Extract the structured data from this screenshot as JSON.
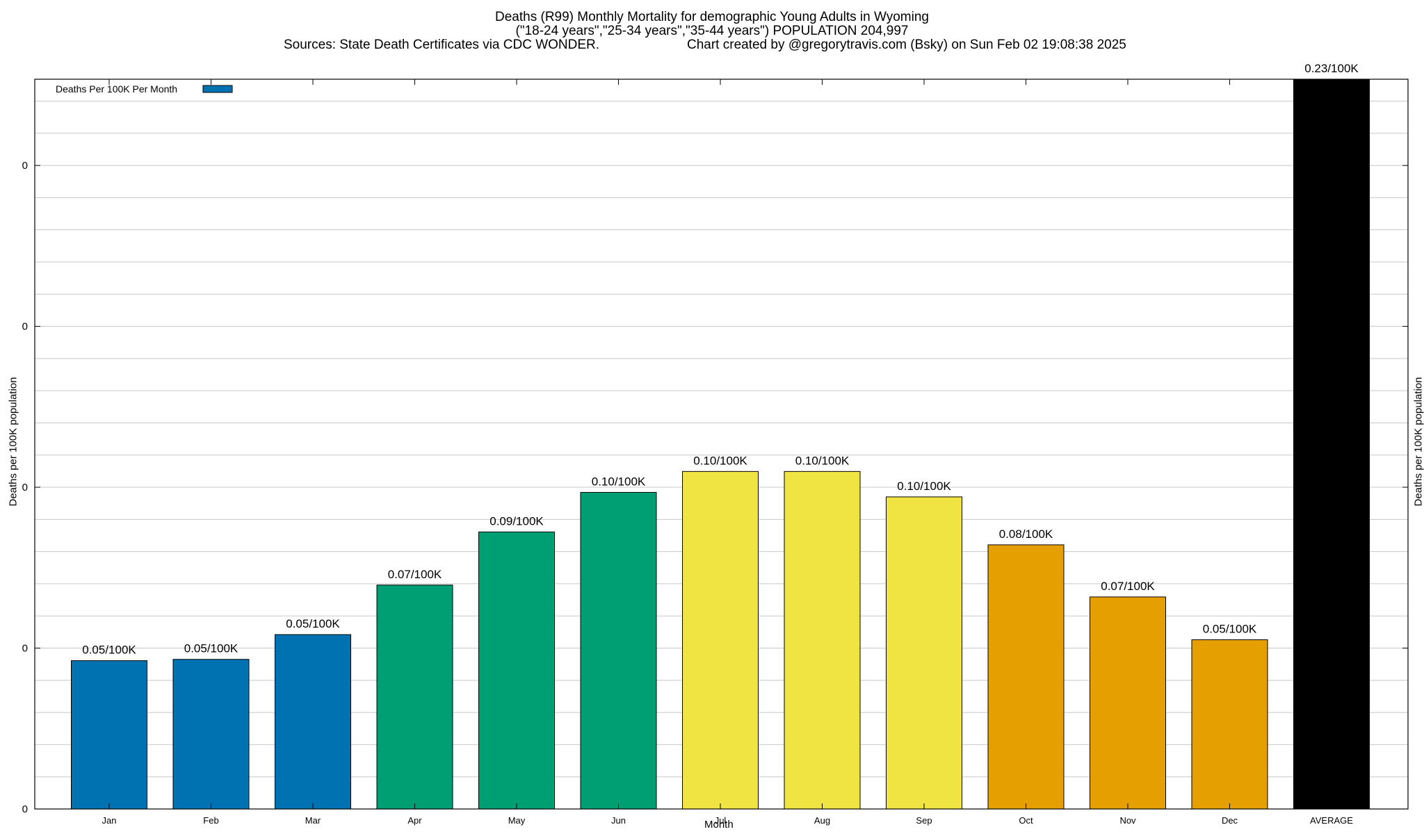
{
  "title": {
    "line1": "Deaths (R99) Monthly Mortality for demographic Young Adults in Wyoming",
    "line2": "(\"18-24 years\",\"25-34 years\",\"35-44 years\") POPULATION 204,997",
    "sources": "Sources: State Death Certificates via CDC WONDER.",
    "credit": "Chart created by @gregorytravis.com (Bsky) on Sun Feb 02 19:08:38 2025"
  },
  "legend": {
    "label": "Deaths Per 100K Per Month",
    "color": "#0072b2"
  },
  "chart_data": {
    "type": "bar",
    "xlabel": "Month",
    "ylabel": "Deaths per 100K population",
    "y2label": "Deaths per 100K population",
    "ylim": [
      0,
      0.2268
    ],
    "ytick_values": [
      0,
      0.05,
      0.1,
      0.15,
      0.2
    ],
    "ytick_labels": [
      "0",
      "0",
      "0",
      "0",
      "0"
    ],
    "grid": true,
    "legend_position": "top-left",
    "categories": [
      "Jan",
      "Feb",
      "Mar",
      "Apr",
      "May",
      "Jun",
      "Jul",
      "Aug",
      "Sep",
      "Oct",
      "Nov",
      "Dec",
      "AVERAGE"
    ],
    "values": [
      0.0461,
      0.0465,
      0.0542,
      0.0696,
      0.0861,
      0.0984,
      0.1049,
      0.1049,
      0.097,
      0.0821,
      0.0659,
      0.0526,
      0.2268
    ],
    "data_labels": [
      "0.05/100K",
      "0.05/100K",
      "0.05/100K",
      "0.07/100K",
      "0.09/100K",
      "0.10/100K",
      "0.10/100K",
      "0.10/100K",
      "0.10/100K",
      "0.08/100K",
      "0.07/100K",
      "0.05/100K",
      "0.23/100K"
    ],
    "bar_colors": [
      "#0072b2",
      "#0072b2",
      "#0072b2",
      "#009e73",
      "#009e73",
      "#009e73",
      "#f0e442",
      "#f0e442",
      "#f0e442",
      "#e69f00",
      "#e69f00",
      "#e69f00",
      "#000000"
    ]
  }
}
